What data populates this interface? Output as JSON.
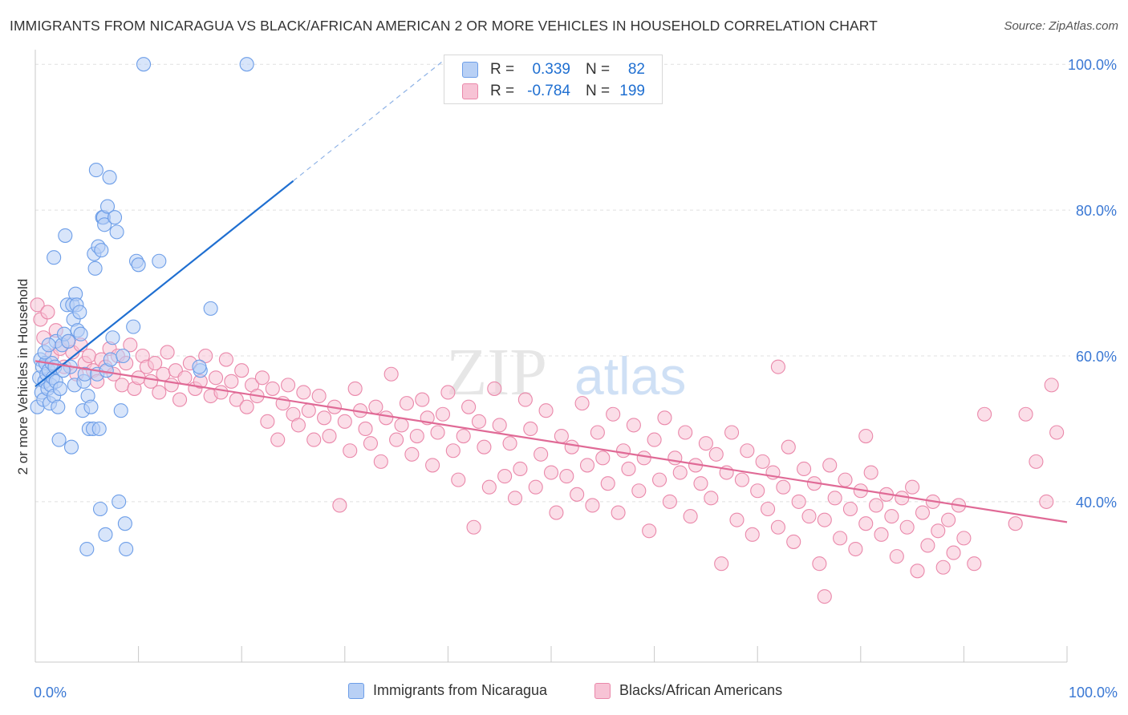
{
  "header": {
    "title": "IMMIGRANTS FROM NICARAGUA VS BLACK/AFRICAN AMERICAN 2 OR MORE VEHICLES IN HOUSEHOLD CORRELATION CHART",
    "source": "Source: ZipAtlas.com"
  },
  "watermark": "ZIPatlas",
  "stats_legend": {
    "rows": [
      {
        "r_label": "R =",
        "r_value": "0.339",
        "n_label": "N =",
        "n_value": "82",
        "color": "#6d9ee8",
        "fill": "#b8d0f5"
      },
      {
        "r_label": "R =",
        "r_value": "-0.784",
        "n_label": "N =",
        "n_value": "199",
        "color": "#ea88aa",
        "fill": "#f7c3d5"
      }
    ]
  },
  "bottom_legend": {
    "items": [
      {
        "label": "Immigrants from Nicaragua",
        "color": "#6d9ee8",
        "fill": "#b8d0f5"
      },
      {
        "label": "Blacks/African Americans",
        "color": "#ea88aa",
        "fill": "#f7c3d5"
      }
    ]
  },
  "chart_data": {
    "type": "scatter",
    "title": "IMMIGRANTS FROM NICARAGUA VS BLACK/AFRICAN AMERICAN 2 OR MORE VEHICLES IN HOUSEHOLD CORRELATION CHART",
    "xlabel": "",
    "ylabel": "2 or more Vehicles in Household",
    "xlim": [
      0,
      100
    ],
    "ylim": [
      18,
      102
    ],
    "x_ticks": [
      0,
      10,
      20,
      30,
      40,
      50,
      60,
      70,
      80,
      90,
      100
    ],
    "x_tick_labels": {
      "0": "0.0%",
      "100": "100.0%"
    },
    "y_ticks": [
      40,
      60,
      80,
      100
    ],
    "y_tick_labels": [
      "40.0%",
      "60.0%",
      "80.0%",
      "100.0%"
    ],
    "grid": true,
    "legend_position": "top-center",
    "series": [
      {
        "name": "Immigrants from Nicaragua",
        "color": "#6d9ee8",
        "fill": "#b8d0f5",
        "trend_color": "#1f6fd1",
        "trend": {
          "x0": 0.0,
          "y0": 55.8,
          "x1": 25.0,
          "y1": 84.0,
          "dash_to_x": 40.0,
          "dash_to_y": 101.0
        },
        "points": [
          [
            0.2,
            53.0
          ],
          [
            0.4,
            57.0
          ],
          [
            0.5,
            59.5
          ],
          [
            0.6,
            55.0
          ],
          [
            0.7,
            58.5
          ],
          [
            0.8,
            54.0
          ],
          [
            0.9,
            56.5
          ],
          [
            1.0,
            59.0
          ],
          [
            1.1,
            57.5
          ],
          [
            1.2,
            55.5
          ],
          [
            1.3,
            58.0
          ],
          [
            1.4,
            53.5
          ],
          [
            1.5,
            56.0
          ],
          [
            1.6,
            59.0
          ],
          [
            1.7,
            57.0
          ],
          [
            1.8,
            54.5
          ],
          [
            1.9,
            58.5
          ],
          [
            2.0,
            56.5
          ],
          [
            2.2,
            53.0
          ],
          [
            2.4,
            55.5
          ],
          [
            2.0,
            62.0
          ],
          [
            1.8,
            73.5
          ],
          [
            2.3,
            48.5
          ],
          [
            2.6,
            61.5
          ],
          [
            2.8,
            63.0
          ],
          [
            2.9,
            76.5
          ],
          [
            3.1,
            67.0
          ],
          [
            3.2,
            62.0
          ],
          [
            3.4,
            58.5
          ],
          [
            3.5,
            47.5
          ],
          [
            3.6,
            67.0
          ],
          [
            3.7,
            65.0
          ],
          [
            3.8,
            56.0
          ],
          [
            3.9,
            68.5
          ],
          [
            4.0,
            67.0
          ],
          [
            4.1,
            63.5
          ],
          [
            4.3,
            66.0
          ],
          [
            4.4,
            63.0
          ],
          [
            4.6,
            52.5
          ],
          [
            4.7,
            56.5
          ],
          [
            4.8,
            57.5
          ],
          [
            5.0,
            33.5
          ],
          [
            5.1,
            54.5
          ],
          [
            5.2,
            50.0
          ],
          [
            5.4,
            53.0
          ],
          [
            5.6,
            50.0
          ],
          [
            5.7,
            74.0
          ],
          [
            5.8,
            72.0
          ],
          [
            5.9,
            85.5
          ],
          [
            6.0,
            57.5
          ],
          [
            6.1,
            75.0
          ],
          [
            6.2,
            50.0
          ],
          [
            6.3,
            39.0
          ],
          [
            6.4,
            74.5
          ],
          [
            6.5,
            79.0
          ],
          [
            6.6,
            79.0
          ],
          [
            6.7,
            78.0
          ],
          [
            6.8,
            35.5
          ],
          [
            6.9,
            58.0
          ],
          [
            7.0,
            80.5
          ],
          [
            7.2,
            84.5
          ],
          [
            7.3,
            59.5
          ],
          [
            7.5,
            62.5
          ],
          [
            7.7,
            79.0
          ],
          [
            7.9,
            77.0
          ],
          [
            8.1,
            40.0
          ],
          [
            8.3,
            52.5
          ],
          [
            8.5,
            60.0
          ],
          [
            8.7,
            37.0
          ],
          [
            8.8,
            33.5
          ],
          [
            9.5,
            64.0
          ],
          [
            9.8,
            73.0
          ],
          [
            10.0,
            72.5
          ],
          [
            10.5,
            100.0
          ],
          [
            12.0,
            73.0
          ],
          [
            17.0,
            66.5
          ],
          [
            16.0,
            58.0
          ],
          [
            20.5,
            100.0
          ],
          [
            15.9,
            58.5
          ],
          [
            0.9,
            60.5
          ],
          [
            1.3,
            61.5
          ],
          [
            2.7,
            58.0
          ]
        ]
      },
      {
        "name": "Blacks/African Americans",
        "color": "#ea88aa",
        "fill": "#f7c3d5",
        "trend_color": "#e06a96",
        "trend": {
          "x0": 0.0,
          "y0": 59.3,
          "x1": 100.0,
          "y1": 37.2
        },
        "points": [
          [
            0.2,
            67.0
          ],
          [
            0.5,
            65.0
          ],
          [
            0.8,
            62.5
          ],
          [
            1.2,
            66.0
          ],
          [
            1.6,
            60.0
          ],
          [
            2.0,
            63.5
          ],
          [
            2.4,
            61.0
          ],
          [
            2.8,
            58.5
          ],
          [
            3.2,
            62.0
          ],
          [
            3.6,
            60.5
          ],
          [
            4.0,
            57.5
          ],
          [
            4.4,
            61.5
          ],
          [
            4.8,
            59.0
          ],
          [
            5.2,
            60.0
          ],
          [
            5.6,
            58.0
          ],
          [
            6.0,
            56.5
          ],
          [
            6.4,
            59.5
          ],
          [
            6.8,
            58.5
          ],
          [
            7.2,
            61.0
          ],
          [
            7.6,
            57.5
          ],
          [
            8.0,
            60.0
          ],
          [
            8.4,
            56.0
          ],
          [
            8.8,
            59.0
          ],
          [
            9.2,
            61.5
          ],
          [
            9.6,
            55.5
          ],
          [
            10.0,
            57.0
          ],
          [
            10.4,
            60.0
          ],
          [
            10.8,
            58.5
          ],
          [
            11.2,
            56.5
          ],
          [
            11.6,
            59.0
          ],
          [
            12.0,
            55.0
          ],
          [
            12.4,
            57.5
          ],
          [
            12.8,
            60.5
          ],
          [
            13.2,
            56.0
          ],
          [
            13.6,
            58.0
          ],
          [
            14.0,
            54.0
          ],
          [
            14.5,
            57.0
          ],
          [
            15.0,
            59.0
          ],
          [
            15.5,
            55.5
          ],
          [
            16.0,
            56.5
          ],
          [
            16.5,
            60.0
          ],
          [
            17.0,
            54.5
          ],
          [
            17.5,
            57.0
          ],
          [
            18.0,
            55.0
          ],
          [
            18.5,
            59.5
          ],
          [
            19.0,
            56.5
          ],
          [
            19.5,
            54.0
          ],
          [
            20.0,
            58.0
          ],
          [
            20.5,
            53.0
          ],
          [
            21.0,
            56.0
          ],
          [
            21.5,
            54.5
          ],
          [
            22.0,
            57.0
          ],
          [
            22.5,
            51.0
          ],
          [
            23.0,
            55.5
          ],
          [
            23.5,
            48.5
          ],
          [
            24.0,
            53.5
          ],
          [
            24.5,
            56.0
          ],
          [
            25.0,
            52.0
          ],
          [
            25.5,
            50.5
          ],
          [
            26.0,
            55.0
          ],
          [
            26.5,
            52.5
          ],
          [
            27.0,
            48.5
          ],
          [
            27.5,
            54.5
          ],
          [
            28.0,
            51.5
          ],
          [
            28.5,
            49.0
          ],
          [
            29.0,
            53.0
          ],
          [
            29.5,
            39.5
          ],
          [
            30.0,
            51.0
          ],
          [
            30.5,
            47.0
          ],
          [
            31.0,
            55.5
          ],
          [
            31.5,
            52.5
          ],
          [
            32.0,
            50.0
          ],
          [
            32.5,
            48.0
          ],
          [
            33.0,
            53.0
          ],
          [
            33.5,
            45.5
          ],
          [
            34.0,
            51.5
          ],
          [
            34.5,
            57.5
          ],
          [
            35.0,
            48.5
          ],
          [
            35.5,
            50.5
          ],
          [
            36.0,
            53.5
          ],
          [
            36.5,
            46.5
          ],
          [
            37.0,
            49.0
          ],
          [
            37.5,
            54.0
          ],
          [
            38.0,
            51.5
          ],
          [
            38.5,
            45.0
          ],
          [
            39.0,
            49.5
          ],
          [
            39.5,
            52.0
          ],
          [
            40.0,
            55.0
          ],
          [
            40.5,
            47.0
          ],
          [
            41.0,
            43.0
          ],
          [
            41.5,
            49.0
          ],
          [
            42.0,
            53.0
          ],
          [
            42.5,
            36.5
          ],
          [
            43.0,
            51.0
          ],
          [
            43.5,
            47.5
          ],
          [
            44.0,
            42.0
          ],
          [
            44.5,
            55.5
          ],
          [
            45.0,
            50.5
          ],
          [
            45.5,
            43.5
          ],
          [
            46.0,
            48.0
          ],
          [
            46.5,
            40.5
          ],
          [
            47.0,
            44.5
          ],
          [
            47.5,
            54.0
          ],
          [
            48.0,
            50.0
          ],
          [
            48.5,
            42.0
          ],
          [
            49.0,
            46.5
          ],
          [
            49.5,
            52.5
          ],
          [
            50.0,
            44.0
          ],
          [
            50.5,
            38.5
          ],
          [
            51.0,
            49.0
          ],
          [
            51.5,
            43.5
          ],
          [
            52.0,
            47.5
          ],
          [
            52.5,
            41.0
          ],
          [
            53.0,
            53.5
          ],
          [
            53.5,
            45.0
          ],
          [
            54.0,
            39.5
          ],
          [
            54.5,
            49.5
          ],
          [
            55.0,
            46.0
          ],
          [
            55.5,
            42.5
          ],
          [
            56.0,
            52.0
          ],
          [
            56.5,
            38.5
          ],
          [
            57.0,
            47.0
          ],
          [
            57.5,
            44.5
          ],
          [
            58.0,
            50.5
          ],
          [
            58.5,
            41.5
          ],
          [
            59.0,
            46.0
          ],
          [
            59.5,
            36.0
          ],
          [
            60.0,
            48.5
          ],
          [
            60.5,
            43.0
          ],
          [
            61.0,
            51.5
          ],
          [
            61.5,
            40.0
          ],
          [
            62.0,
            46.0
          ],
          [
            62.5,
            44.0
          ],
          [
            63.0,
            49.5
          ],
          [
            63.5,
            38.0
          ],
          [
            64.0,
            45.0
          ],
          [
            64.5,
            42.5
          ],
          [
            65.0,
            48.0
          ],
          [
            65.5,
            40.5
          ],
          [
            66.0,
            46.5
          ],
          [
            66.5,
            31.5
          ],
          [
            67.0,
            44.0
          ],
          [
            67.5,
            49.5
          ],
          [
            68.0,
            37.5
          ],
          [
            68.5,
            43.0
          ],
          [
            69.0,
            47.0
          ],
          [
            69.5,
            35.5
          ],
          [
            70.0,
            41.5
          ],
          [
            70.5,
            45.5
          ],
          [
            71.0,
            39.0
          ],
          [
            71.5,
            44.0
          ],
          [
            72.0,
            36.5
          ],
          [
            72.5,
            42.0
          ],
          [
            73.0,
            47.5
          ],
          [
            73.5,
            34.5
          ],
          [
            74.0,
            40.0
          ],
          [
            74.5,
            44.5
          ],
          [
            75.0,
            38.0
          ],
          [
            75.5,
            42.5
          ],
          [
            76.0,
            31.5
          ],
          [
            76.5,
            37.5
          ],
          [
            77.0,
            45.0
          ],
          [
            77.5,
            40.5
          ],
          [
            78.0,
            35.0
          ],
          [
            78.5,
            43.0
          ],
          [
            79.0,
            39.0
          ],
          [
            79.5,
            33.5
          ],
          [
            80.0,
            41.5
          ],
          [
            80.5,
            37.0
          ],
          [
            81.0,
            44.0
          ],
          [
            81.5,
            39.5
          ],
          [
            82.0,
            35.5
          ],
          [
            82.5,
            41.0
          ],
          [
            83.0,
            38.0
          ],
          [
            83.5,
            32.5
          ],
          [
            84.0,
            40.5
          ],
          [
            84.5,
            36.5
          ],
          [
            85.0,
            42.0
          ],
          [
            85.5,
            30.5
          ],
          [
            86.0,
            38.5
          ],
          [
            86.5,
            34.0
          ],
          [
            87.0,
            40.0
          ],
          [
            87.5,
            36.0
          ],
          [
            88.0,
            31.0
          ],
          [
            88.5,
            37.5
          ],
          [
            89.0,
            33.0
          ],
          [
            89.5,
            39.5
          ],
          [
            90.0,
            35.0
          ],
          [
            91.0,
            31.5
          ],
          [
            92.0,
            52.0
          ],
          [
            95.0,
            37.0
          ],
          [
            97.0,
            45.5
          ],
          [
            98.0,
            40.0
          ],
          [
            99.0,
            49.5
          ],
          [
            98.5,
            56.0
          ],
          [
            76.5,
            27.0
          ],
          [
            72.0,
            58.5
          ],
          [
            80.5,
            49.0
          ],
          [
            96.0,
            52.0
          ]
        ]
      }
    ]
  }
}
